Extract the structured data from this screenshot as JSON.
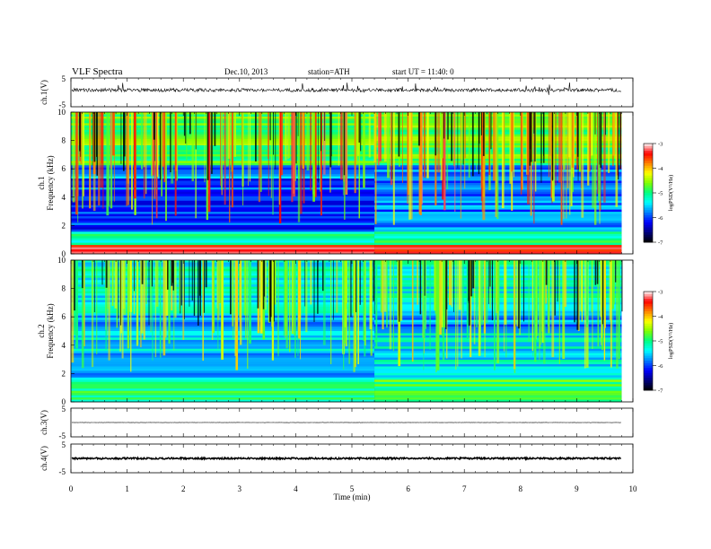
{
  "header": {
    "title": "VLF  Spectra",
    "date": "Dec.10, 2013",
    "station": "station=ATH",
    "start": "start  UT =   11:40: 0"
  },
  "chart_data": [
    {
      "type": "line",
      "name": "ch.1 waveform",
      "ylabel": "ch.1(V)",
      "ylim": [
        -5,
        5
      ],
      "yticks": [
        "5",
        "-5"
      ],
      "x_range_min": [
        0,
        9.8
      ],
      "baseline": 0.8,
      "noise_amplitude": 0.6,
      "spike_amplitude": 2.5
    },
    {
      "type": "heatmap",
      "name": "ch.1 spectrogram",
      "ylabel": "Frequency  (kHz)",
      "channel_label": "ch.1",
      "ylim": [
        0,
        10
      ],
      "yticks": [
        "0",
        "2",
        "4",
        "6",
        "8",
        "10"
      ],
      "xlim": [
        0,
        9.8
      ],
      "value": "log PSD",
      "colorbar": {
        "range": [
          -7,
          -3
        ],
        "ticks": [
          "-3",
          "-4",
          "-5",
          "-6",
          "-7"
        ],
        "label": "logPSD(V²/Hz)"
      },
      "colormap": [
        "#000000",
        "#00007f",
        "#0000ff",
        "#0080ff",
        "#00ffff",
        "#00ff80",
        "#80ff00",
        "#ffff00",
        "#ff8000",
        "#ff0000",
        "#ffffff"
      ],
      "level_change_minute": 5.4
    },
    {
      "type": "heatmap",
      "name": "ch.2 spectrogram",
      "ylabel": "Frequency  (kHz)",
      "channel_label": "ch.2",
      "ylim": [
        0,
        10
      ],
      "yticks": [
        "0",
        "2",
        "4",
        "6",
        "8",
        "10"
      ],
      "xlim": [
        0,
        9.8
      ],
      "value": "log PSD",
      "colorbar": {
        "range": [
          -7,
          -3
        ],
        "ticks": [
          "-3",
          "-4",
          "-5",
          "-6",
          "-7"
        ],
        "label": "logPSD(V²/Hz)"
      },
      "colormap": [
        "#000000",
        "#00007f",
        "#0000ff",
        "#0080ff",
        "#00ffff",
        "#00ff80",
        "#80ff00",
        "#ffff00",
        "#ff8000",
        "#ff0000",
        "#ffffff"
      ],
      "level_change_minute": 5.4
    },
    {
      "type": "line",
      "name": "ch.3 waveform",
      "ylabel": "ch.3(V)",
      "ylim": [
        -5,
        5
      ],
      "yticks": [
        "5",
        "-5"
      ],
      "baseline": 0.0,
      "noise_amplitude": 0.05
    },
    {
      "type": "line",
      "name": "ch.4 waveform",
      "ylabel": "ch.4(V)",
      "ylim": [
        -5,
        5
      ],
      "yticks": [
        "5",
        "-5"
      ],
      "baseline": 0.0,
      "noise_amplitude": 0.3
    }
  ],
  "xaxis": {
    "label": "Time  (min)",
    "xlim": [
      0,
      10
    ],
    "ticks": [
      "0",
      "1",
      "2",
      "3",
      "4",
      "5",
      "6",
      "7",
      "8",
      "9",
      "10"
    ]
  }
}
